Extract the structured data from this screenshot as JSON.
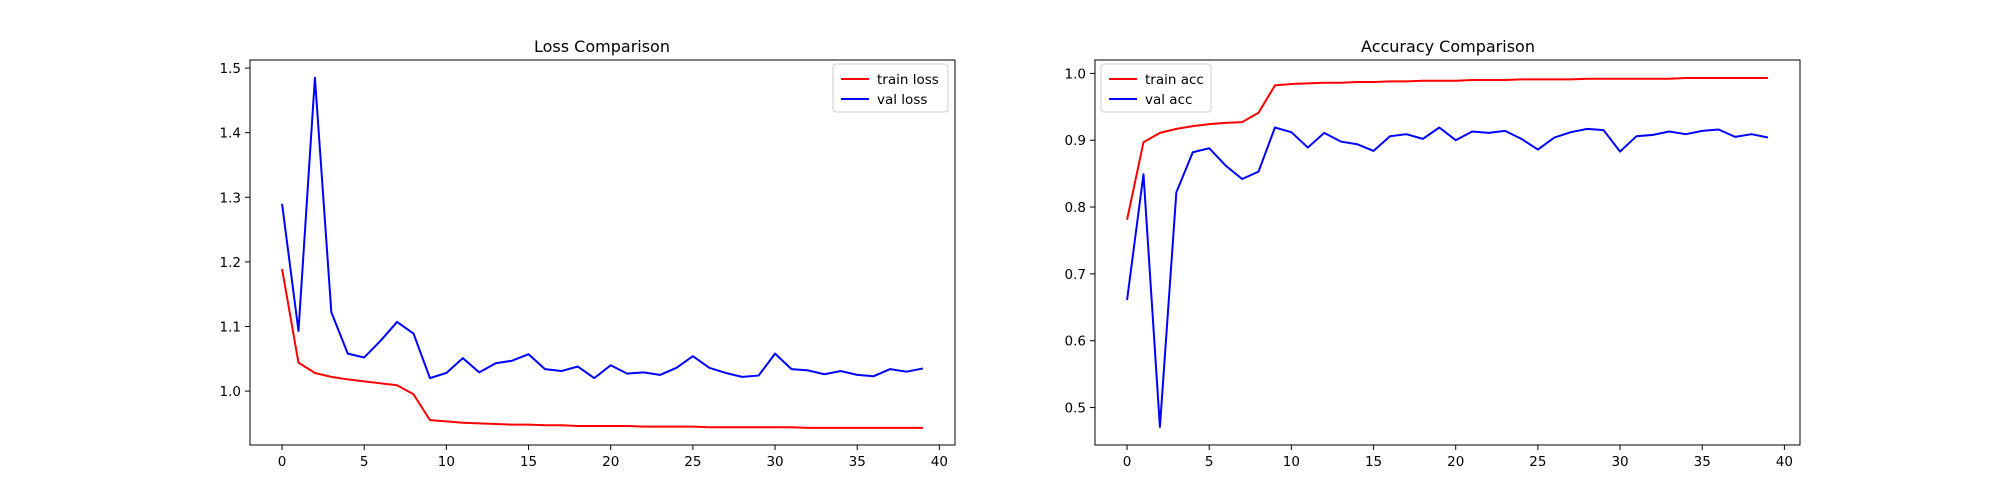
{
  "colors": {
    "train": "#ff0000",
    "val": "#0000ff",
    "frame": "#000000",
    "legend_border": "#cccccc"
  },
  "chart_data": [
    {
      "type": "line",
      "title": "Loss Comparison",
      "xlabel": "",
      "ylabel": "",
      "x": [
        0,
        1,
        2,
        3,
        4,
        5,
        6,
        7,
        8,
        9,
        10,
        11,
        12,
        13,
        14,
        15,
        16,
        17,
        18,
        19,
        20,
        21,
        22,
        23,
        24,
        25,
        26,
        27,
        28,
        29,
        30,
        31,
        32,
        33,
        34,
        35,
        36,
        37,
        38,
        39
      ],
      "xlim": [
        -1.95,
        40.95
      ],
      "ylim": [
        0.9165,
        1.5125
      ],
      "xticks": [
        0,
        5,
        10,
        15,
        20,
        25,
        30,
        35,
        40
      ],
      "yticks": [
        1.0,
        1.1,
        1.2,
        1.3,
        1.4,
        1.5
      ],
      "ytick_labels": [
        "1.0",
        "1.1",
        "1.2",
        "1.3",
        "1.4",
        "1.5"
      ],
      "grid": false,
      "legend_position": "upper-right",
      "series": [
        {
          "name": "train loss",
          "color": "#ff0000",
          "values": [
            1.189,
            1.044,
            1.028,
            1.022,
            1.018,
            1.015,
            1.012,
            1.009,
            0.995,
            0.955,
            0.953,
            0.951,
            0.95,
            0.949,
            0.948,
            0.948,
            0.947,
            0.947,
            0.946,
            0.946,
            0.946,
            0.946,
            0.945,
            0.945,
            0.945,
            0.945,
            0.944,
            0.944,
            0.944,
            0.944,
            0.944,
            0.944,
            0.943,
            0.943,
            0.943,
            0.943,
            0.943,
            0.943,
            0.943,
            0.943
          ]
        },
        {
          "name": "val loss",
          "color": "#0000ff",
          "values": [
            1.29,
            1.093,
            1.485,
            1.122,
            1.058,
            1.052,
            1.078,
            1.107,
            1.089,
            1.02,
            1.028,
            1.051,
            1.029,
            1.043,
            1.047,
            1.057,
            1.034,
            1.031,
            1.038,
            1.02,
            1.04,
            1.027,
            1.029,
            1.025,
            1.036,
            1.054,
            1.036,
            1.028,
            1.022,
            1.024,
            1.058,
            1.034,
            1.032,
            1.026,
            1.031,
            1.025,
            1.023,
            1.034,
            1.03,
            1.035
          ]
        }
      ]
    },
    {
      "type": "line",
      "title": "Accuracy Comparison",
      "xlabel": "",
      "ylabel": "",
      "x": [
        0,
        1,
        2,
        3,
        4,
        5,
        6,
        7,
        8,
        9,
        10,
        11,
        12,
        13,
        14,
        15,
        16,
        17,
        18,
        19,
        20,
        21,
        22,
        23,
        24,
        25,
        26,
        27,
        28,
        29,
        30,
        31,
        32,
        33,
        34,
        35,
        36,
        37,
        38,
        39
      ],
      "xlim": [
        -1.95,
        40.95
      ],
      "ylim": [
        0.444,
        1.02
      ],
      "xticks": [
        0,
        5,
        10,
        15,
        20,
        25,
        30,
        35,
        40
      ],
      "yticks": [
        0.5,
        0.6,
        0.7,
        0.8,
        0.9,
        1.0
      ],
      "ytick_labels": [
        "0.5",
        "0.6",
        "0.7",
        "0.8",
        "0.9",
        "1.0"
      ],
      "grid": false,
      "legend_position": "upper-left",
      "series": [
        {
          "name": "train acc",
          "color": "#ff0000",
          "values": [
            0.781,
            0.897,
            0.911,
            0.917,
            0.921,
            0.924,
            0.926,
            0.927,
            0.941,
            0.982,
            0.984,
            0.985,
            0.986,
            0.986,
            0.987,
            0.987,
            0.988,
            0.988,
            0.989,
            0.989,
            0.989,
            0.99,
            0.99,
            0.99,
            0.991,
            0.991,
            0.991,
            0.991,
            0.992,
            0.992,
            0.992,
            0.992,
            0.992,
            0.992,
            0.993,
            0.993,
            0.993,
            0.993,
            0.993,
            0.993
          ]
        },
        {
          "name": "val acc",
          "color": "#0000ff",
          "values": [
            0.661,
            0.849,
            0.471,
            0.822,
            0.882,
            0.888,
            0.862,
            0.842,
            0.853,
            0.919,
            0.912,
            0.889,
            0.911,
            0.898,
            0.894,
            0.884,
            0.906,
            0.909,
            0.902,
            0.919,
            0.9,
            0.913,
            0.911,
            0.914,
            0.902,
            0.886,
            0.904,
            0.912,
            0.917,
            0.915,
            0.883,
            0.906,
            0.908,
            0.913,
            0.909,
            0.914,
            0.916,
            0.905,
            0.909,
            0.904
          ]
        }
      ]
    }
  ]
}
